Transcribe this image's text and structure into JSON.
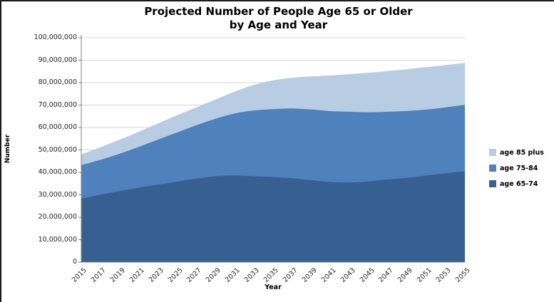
{
  "title": {
    "line1": "Projected Number of People Age 65 or Older",
    "line2": "by Age and Year"
  },
  "axes": {
    "y_label": "Number",
    "x_label": "Year",
    "y_ticks": [
      "100,000,000",
      "90,000,000",
      "80,000,000",
      "70,000,000",
      "60,000,000",
      "50,000,000",
      "40,000,000",
      "30,000,000",
      "20,000,000",
      "10,000,000",
      "0"
    ],
    "x_ticks": [
      "2015",
      "2017",
      "2019",
      "2021",
      "2023",
      "2025",
      "2027",
      "2029",
      "2031",
      "2033",
      "2035",
      "2037",
      "2039",
      "2041",
      "2043",
      "2045",
      "2047",
      "2049",
      "2051",
      "2053",
      "2055"
    ]
  },
  "legend": [
    {
      "label": "age 85 plus",
      "color": "#B8CCE4"
    },
    {
      "label": "age 75-84",
      "color": "#4F81BD"
    },
    {
      "label": "age 65-74",
      "color": "#376092"
    }
  ],
  "colors": {
    "grid": "#D6D6D6",
    "axis": "#808080",
    "area_dark": "#376092",
    "area_mid": "#4F81BD",
    "area_light": "#B8CCE4"
  },
  "chart_data": {
    "type": "area",
    "stacked": true,
    "title": "Projected Number of People Age 65 or Older by Age and Year",
    "xlabel": "Year",
    "ylabel": "Number",
    "ylim": [
      0,
      100000000
    ],
    "grid": true,
    "legend_position": "right",
    "x": [
      2015,
      2017,
      2019,
      2021,
      2023,
      2025,
      2027,
      2029,
      2031,
      2033,
      2035,
      2037,
      2039,
      2041,
      2043,
      2045,
      2047,
      2049,
      2051,
      2053,
      2055
    ],
    "series": [
      {
        "name": "age 65-74",
        "color": "#376092",
        "values": [
          28300000,
          30100000,
          31700000,
          33200000,
          34500000,
          35900000,
          37200000,
          38300000,
          38600000,
          38300000,
          37900000,
          37400000,
          36500000,
          35700000,
          35500000,
          36000000,
          36900000,
          37600000,
          38600000,
          39600000,
          40500000
        ]
      },
      {
        "name": "age 75-84",
        "color": "#4F81BD",
        "values": [
          14900000,
          15500000,
          16600000,
          18200000,
          20100000,
          21900000,
          23800000,
          25600000,
          27700000,
          29300000,
          30300000,
          31100000,
          31500000,
          31600000,
          31500000,
          30800000,
          30100000,
          29800000,
          29400000,
          29400000,
          29600000
        ]
      },
      {
        "name": "age 85 plus",
        "color": "#B8CCE4",
        "values": [
          4800000,
          5600000,
          6300000,
          6700000,
          7200000,
          7700000,
          8000000,
          8600000,
          9700000,
          11400000,
          12800000,
          13700000,
          14800000,
          15900000,
          16800000,
          17600000,
          18200000,
          18600000,
          18900000,
          18800000,
          18700000
        ]
      }
    ]
  }
}
